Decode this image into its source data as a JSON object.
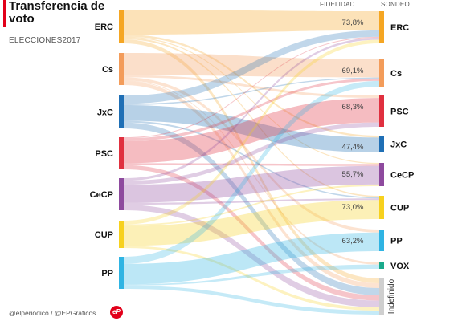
{
  "header": {
    "title": "Transferencia de voto",
    "subtitle": "ELECCIONES2017",
    "col_left": "FIDELIDAD",
    "col_right": "SONDEO"
  },
  "footer": {
    "credit": "@elperiodico / @EPGraficos",
    "logo_text": "eP"
  },
  "chart_data": {
    "type": "sankey",
    "sources": [
      {
        "name": "ERC",
        "color": "#f5a623"
      },
      {
        "name": "Cs",
        "color": "#f39c5a"
      },
      {
        "name": "JxC",
        "color": "#1f6fb5"
      },
      {
        "name": "PSC",
        "color": "#e0303f"
      },
      {
        "name": "CeCP",
        "color": "#8e4a9e"
      },
      {
        "name": "CUP",
        "color": "#f7d11e"
      },
      {
        "name": "PP",
        "color": "#2fb4e3"
      }
    ],
    "targets": [
      {
        "name": "ERC",
        "color": "#f5a623",
        "fidelity": "73,8%"
      },
      {
        "name": "Cs",
        "color": "#f39c5a",
        "fidelity": "69,1%"
      },
      {
        "name": "PSC",
        "color": "#e0303f",
        "fidelity": "68,3%"
      },
      {
        "name": "JxC",
        "color": "#1f6fb5",
        "fidelity": "47,4%"
      },
      {
        "name": "CeCP",
        "color": "#8e4a9e",
        "fidelity": "55,7%"
      },
      {
        "name": "CUP",
        "color": "#f7d11e",
        "fidelity": "73,0%"
      },
      {
        "name": "PP",
        "color": "#2fb4e3",
        "fidelity": "63,2%"
      },
      {
        "name": "VOX",
        "color": "#1aaa8c",
        "fidelity": ""
      },
      {
        "name": "Indefinido",
        "color": "#cfcfcf",
        "fidelity": ""
      }
    ],
    "flows": [
      {
        "source": "ERC",
        "target": "ERC",
        "value": 73.8
      },
      {
        "source": "ERC",
        "target": "JxC",
        "value": 6
      },
      {
        "source": "ERC",
        "target": "CUP",
        "value": 5
      },
      {
        "source": "ERC",
        "target": "CeCP",
        "value": 3
      },
      {
        "source": "ERC",
        "target": "Indefinido",
        "value": 12
      },
      {
        "source": "Cs",
        "target": "Cs",
        "value": 69.1
      },
      {
        "source": "Cs",
        "target": "PP",
        "value": 10
      },
      {
        "source": "Cs",
        "target": "PSC",
        "value": 7
      },
      {
        "source": "Cs",
        "target": "VOX",
        "value": 2
      },
      {
        "source": "Cs",
        "target": "Indefinido",
        "value": 12
      },
      {
        "source": "JxC",
        "target": "JxC",
        "value": 47.4
      },
      {
        "source": "JxC",
        "target": "ERC",
        "value": 25
      },
      {
        "source": "JxC",
        "target": "CUP",
        "value": 5
      },
      {
        "source": "JxC",
        "target": "Indefinido",
        "value": 18
      },
      {
        "source": "JxC",
        "target": "Cs",
        "value": 4
      },
      {
        "source": "PSC",
        "target": "PSC",
        "value": 68.3
      },
      {
        "source": "PSC",
        "target": "Cs",
        "value": 9
      },
      {
        "source": "PSC",
        "target": "CeCP",
        "value": 6
      },
      {
        "source": "PSC",
        "target": "ERC",
        "value": 3
      },
      {
        "source": "PSC",
        "target": "Indefinido",
        "value": 13
      },
      {
        "source": "CeCP",
        "target": "CeCP",
        "value": 55.7
      },
      {
        "source": "CeCP",
        "target": "PSC",
        "value": 12
      },
      {
        "source": "CeCP",
        "target": "ERC",
        "value": 8
      },
      {
        "source": "CeCP",
        "target": "CUP",
        "value": 6
      },
      {
        "source": "CeCP",
        "target": "Indefinido",
        "value": 17
      },
      {
        "source": "CUP",
        "target": "CUP",
        "value": 73.0
      },
      {
        "source": "CUP",
        "target": "ERC",
        "value": 14
      },
      {
        "source": "CUP",
        "target": "CeCP",
        "value": 5
      },
      {
        "source": "CUP",
        "target": "Indefinido",
        "value": 8
      },
      {
        "source": "PP",
        "target": "PP",
        "value": 63.2
      },
      {
        "source": "PP",
        "target": "Cs",
        "value": 22
      },
      {
        "source": "PP",
        "target": "VOX",
        "value": 4
      },
      {
        "source": "PP",
        "target": "Indefinido",
        "value": 10
      }
    ]
  }
}
